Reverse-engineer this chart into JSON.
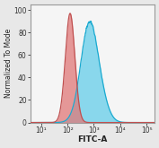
{
  "title": "",
  "xlabel": "FITC-A",
  "ylabel": "Normalized To Mode",
  "xlim_log": [
    0.6,
    5.3
  ],
  "ylim": [
    0,
    105
  ],
  "yticks": [
    0,
    20,
    40,
    60,
    80,
    100
  ],
  "xtick_positions": [
    1,
    2,
    3,
    4,
    5
  ],
  "xtick_labels": [
    "10¹",
    "10²",
    "10³",
    "10⁴",
    "10⁵"
  ],
  "red_peak_log_mean": 2.1,
  "red_peak_log_std": 0.18,
  "red_peak_height": 97,
  "blue_peak_log_mean": 2.82,
  "blue_peak_log_std": 0.32,
  "blue_peak_height": 90,
  "red_color": "#E07878",
  "blue_color": "#50C8E8",
  "red_face_color": "#E07878",
  "blue_face_color": "#50C8E8",
  "overlap_color": "#8899AA",
  "background_color": "#E8E8E8",
  "plot_bg_color": "#F5F5F5",
  "fill_alpha_red": 0.75,
  "fill_alpha_blue": 0.65,
  "ylabel_fontsize": 5.5,
  "xlabel_fontsize": 6.5,
  "tick_fontsize": 5.5,
  "border_color": "#999999"
}
